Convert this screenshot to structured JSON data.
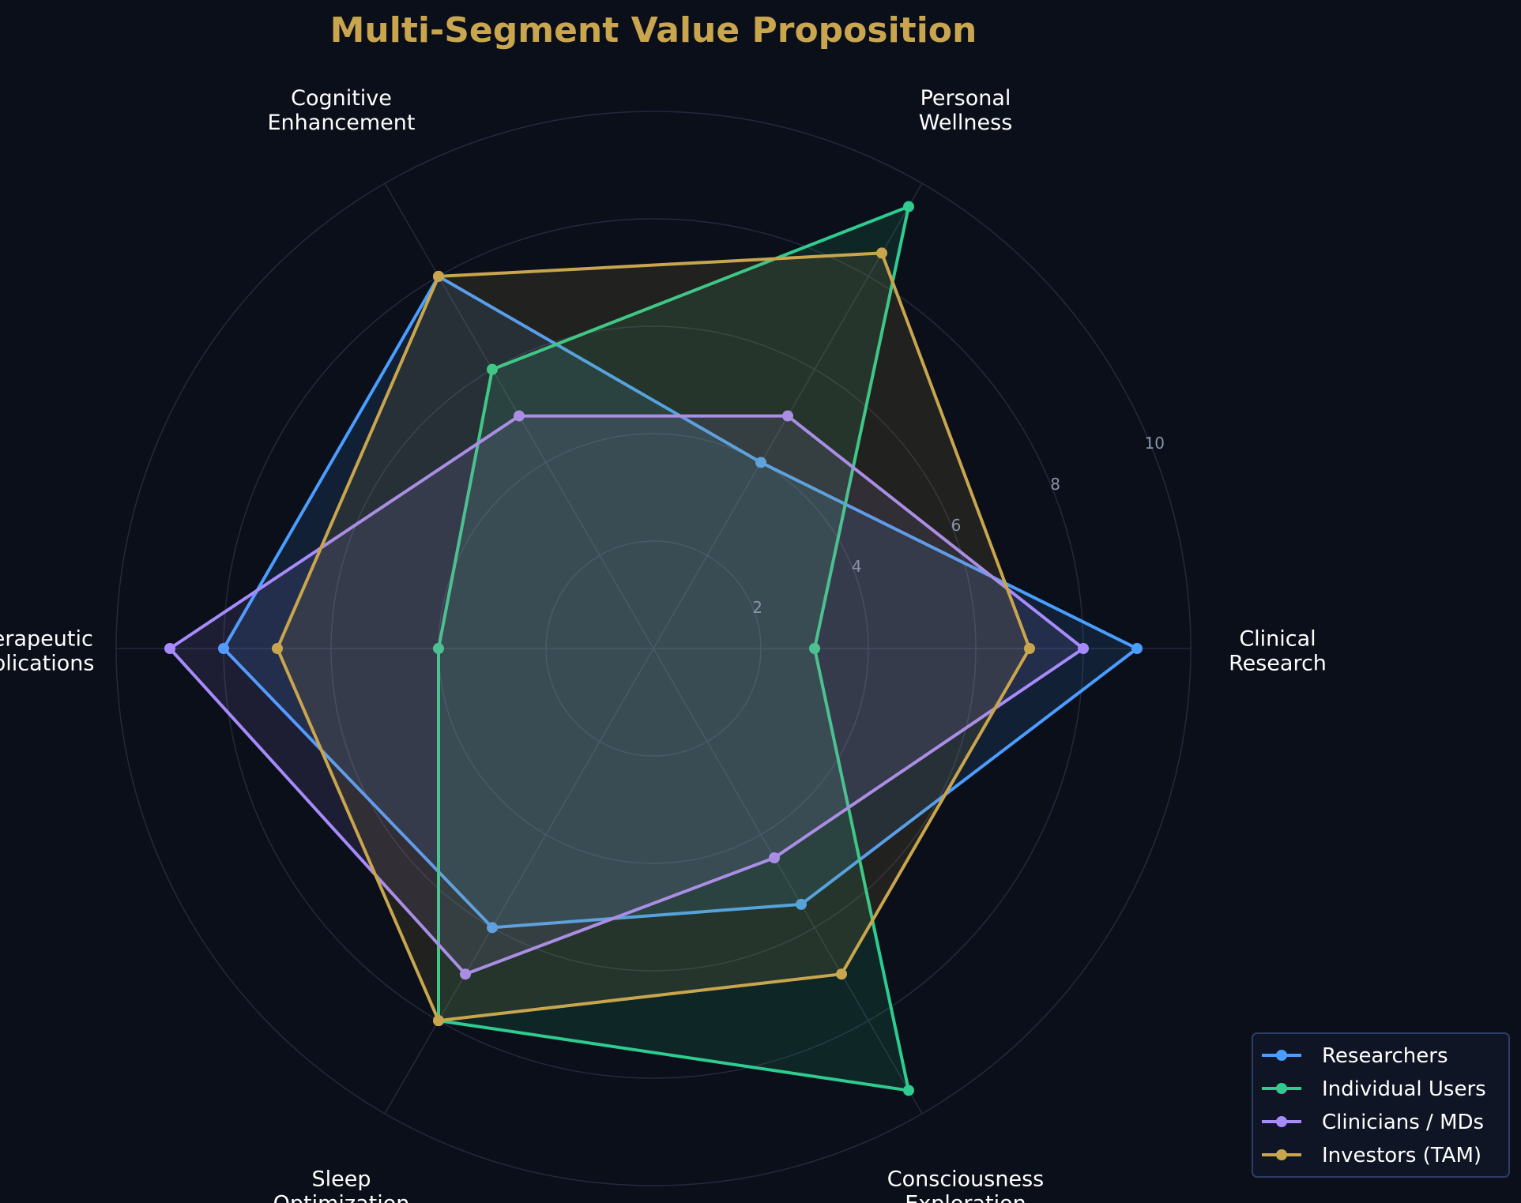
{
  "chart_data": {
    "type": "radar",
    "title": "Multi-Segment Value Proposition",
    "categories": [
      [
        "Clinical",
        "Research"
      ],
      [
        "Personal",
        "Wellness"
      ],
      [
        "Cognitive",
        "Enhancement"
      ],
      [
        "Therapeutic",
        "Applications"
      ],
      [
        "Sleep",
        "Optimization"
      ],
      [
        "Consciousness",
        "Exploration"
      ]
    ],
    "rlim": [
      0,
      10
    ],
    "radial_ticks": [
      2,
      4,
      6,
      8,
      10
    ],
    "grid": true,
    "legend_position": "bottom-right",
    "series": [
      {
        "name": "Researchers",
        "color": "#4a9eff",
        "values": [
          9,
          4,
          8,
          8,
          6,
          5.5
        ]
      },
      {
        "name": "Individual Users",
        "color": "#2ecc8f",
        "values": [
          3,
          9.5,
          6,
          4,
          8,
          9.5
        ]
      },
      {
        "name": "Clinicians / MDs",
        "color": "#a78bfa",
        "values": [
          8,
          5,
          5,
          9,
          7,
          4.5
        ]
      },
      {
        "name": "Investors (TAM)",
        "color": "#c9a64e",
        "values": [
          7,
          8.5,
          8,
          7,
          8,
          7
        ]
      }
    ]
  },
  "colors": {
    "background": "#0b0f1a",
    "grid": "#232a3d",
    "title": "#c9a64e",
    "legend_border": "#2c3e66",
    "legend_bg": "#0f1524"
  }
}
